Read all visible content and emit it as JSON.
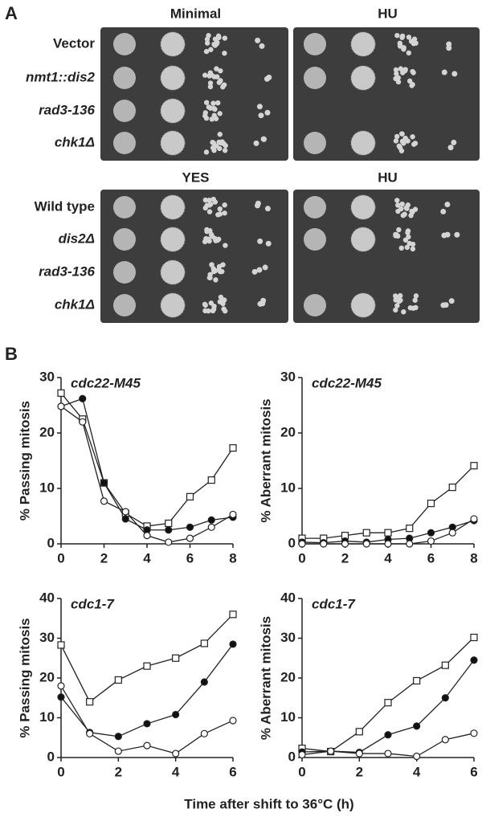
{
  "panel_a": {
    "label": "A",
    "top": {
      "headers": [
        "Minimal",
        "HU"
      ],
      "rows": [
        "Vector",
        "nmt1::dis2",
        "rad3-136",
        "chk1Δ"
      ],
      "italic": [
        false,
        true,
        true,
        true
      ]
    },
    "bottom": {
      "headers": [
        "YES",
        "HU"
      ],
      "rows": [
        "Wild type",
        "dis2Δ",
        "rad3-136",
        "chk1Δ"
      ],
      "italic": [
        false,
        true,
        true,
        true
      ]
    }
  },
  "panel_b": {
    "label": "B",
    "x_label": "Time after shift to 36°C (h)"
  },
  "chart_data": [
    {
      "type": "line",
      "title": "cdc22-M45",
      "ylabel": "% Passing mitosis",
      "x": [
        0,
        1,
        2,
        3,
        4,
        5,
        6,
        7,
        8
      ],
      "xlim": [
        0,
        8
      ],
      "xticks": [
        0,
        2,
        4,
        6,
        8
      ],
      "ylim": [
        0,
        30
      ],
      "yticks": [
        0,
        10,
        20,
        30
      ],
      "series": [
        {
          "marker": "square",
          "color": "#ffffff",
          "values": [
            27.2,
            22.5,
            11,
            5.5,
            3.2,
            3.7,
            8.5,
            11.5,
            17.3
          ]
        },
        {
          "marker": "circle",
          "color": "#111111",
          "values": [
            24.8,
            26.2,
            11,
            4.5,
            2.5,
            2.5,
            3,
            4.3,
            4.8
          ]
        },
        {
          "marker": "circle",
          "color": "#ffffff",
          "values": [
            24.8,
            22,
            7.7,
            5.8,
            1.5,
            0.3,
            1,
            3,
            5.3
          ]
        }
      ]
    },
    {
      "type": "line",
      "title": "cdc22-M45",
      "ylabel": "% Aberrant mitosis",
      "x": [
        0,
        1,
        2,
        3,
        4,
        5,
        6,
        7,
        8
      ],
      "xlim": [
        0,
        8
      ],
      "xticks": [
        0,
        2,
        4,
        6,
        8
      ],
      "ylim": [
        0,
        30
      ],
      "yticks": [
        0,
        10,
        20,
        30
      ],
      "series": [
        {
          "marker": "square",
          "color": "#ffffff",
          "values": [
            1,
            1,
            1.5,
            2,
            2,
            2.8,
            7.3,
            10.2,
            14.1
          ]
        },
        {
          "marker": "circle",
          "color": "#111111",
          "values": [
            0.3,
            0.2,
            0.5,
            0.3,
            0.8,
            1,
            2,
            3,
            4.2
          ]
        },
        {
          "marker": "circle",
          "color": "#ffffff",
          "values": [
            0,
            0,
            0,
            0,
            0,
            0,
            0.5,
            2,
            4.5
          ]
        }
      ]
    },
    {
      "type": "line",
      "title": "cdc1-7",
      "ylabel": "% Passing mitosis",
      "x": [
        0,
        1,
        2,
        3,
        4,
        5,
        6
      ],
      "xlim": [
        0,
        6
      ],
      "xticks": [
        0,
        2,
        4,
        6
      ],
      "ylim": [
        0,
        40
      ],
      "yticks": [
        0,
        10,
        20,
        30,
        40
      ],
      "series": [
        {
          "marker": "square",
          "color": "#ffffff",
          "values": [
            28.3,
            14,
            19.5,
            23,
            25,
            28.7,
            36
          ]
        },
        {
          "marker": "circle",
          "color": "#111111",
          "values": [
            15.2,
            6.3,
            5.3,
            8.5,
            10.8,
            19,
            28.5
          ]
        },
        {
          "marker": "circle",
          "color": "#ffffff",
          "values": [
            18,
            6,
            1.6,
            3,
            1,
            6,
            9.3
          ]
        }
      ]
    },
    {
      "type": "line",
      "title": "cdc1-7",
      "ylabel": "% Aberrant mitosis",
      "x": [
        0,
        1,
        2,
        3,
        4,
        5,
        6
      ],
      "xlim": [
        0,
        6
      ],
      "xticks": [
        0,
        2,
        4,
        6
      ],
      "ylim": [
        0,
        40
      ],
      "yticks": [
        0,
        10,
        20,
        30,
        40
      ],
      "series": [
        {
          "marker": "square",
          "color": "#ffffff",
          "values": [
            2.3,
            1.5,
            6.5,
            13.8,
            19.3,
            23.2,
            30.2
          ]
        },
        {
          "marker": "circle",
          "color": "#111111",
          "values": [
            1.4,
            1.6,
            1.3,
            5.7,
            7.9,
            15,
            24.5
          ]
        },
        {
          "marker": "circle",
          "color": "#ffffff",
          "values": [
            0.7,
            1.6,
            1,
            1,
            0.3,
            4.5,
            6.1
          ]
        }
      ]
    }
  ]
}
